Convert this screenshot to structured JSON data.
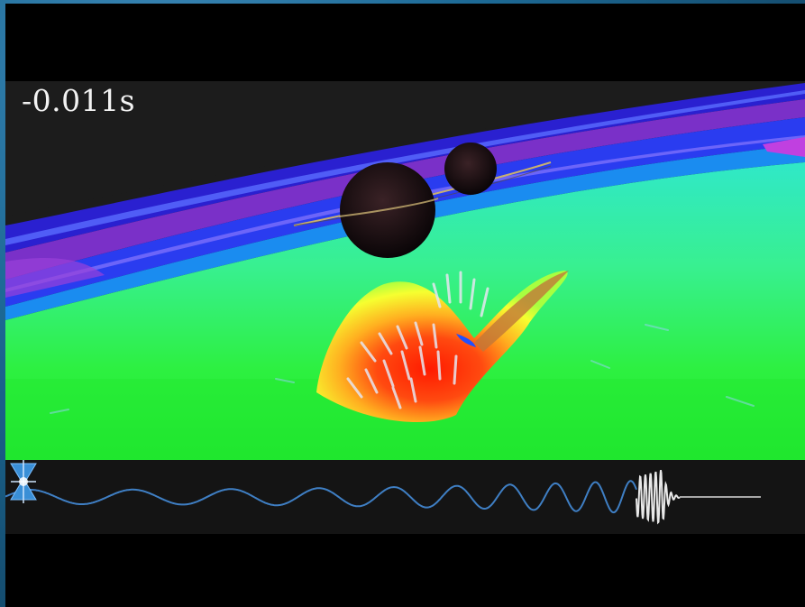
{
  "video": {
    "time_label": "-0.011s"
  },
  "colors": {
    "background_border": "#1b5e86",
    "waveform_inspiral": "#3f7fc4",
    "waveform_merger": "#e8e8e8",
    "detector_icon": "#3a8fd6"
  },
  "icons": {
    "detector": "interferometer-detector-icon"
  }
}
